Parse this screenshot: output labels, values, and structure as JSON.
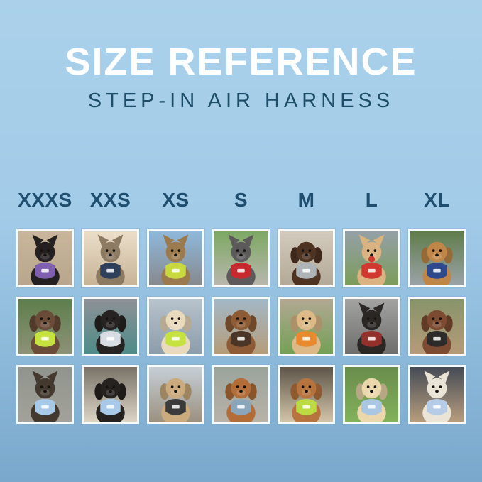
{
  "title": "SIZE REFERENCE",
  "subtitle": "STEP-IN AIR HARNESS",
  "colors": {
    "background_top": "#abd1ea",
    "background_bottom": "#79a8cc",
    "title_text": "#ffffff",
    "subtitle_text": "#1d4d68",
    "header_text": "#1f4e6e",
    "photo_frame": "#f7fbfe"
  },
  "sizes": [
    "XXXS",
    "XXS",
    "XS",
    "S",
    "M",
    "L",
    "XL"
  ],
  "photos": [
    {
      "row": 1,
      "size": "XXXS",
      "animal": "cat",
      "ears": "pointed",
      "fur": "#241f20",
      "harness": "#7e5fb0",
      "bg": [
        "#c9b69b",
        "#b7a68d"
      ],
      "desc": "Black kitten wearing a purple harness indoors by a stair banister"
    },
    {
      "row": 1,
      "size": "XXS",
      "animal": "cat",
      "ears": "pointed",
      "fur": "#8d7a62",
      "harness": "#2e3f5c",
      "bg": [
        "#ecdfca",
        "#c7b397"
      ],
      "desc": "Brown tabby cat wearing a navy harness looking out a window"
    },
    {
      "row": 1,
      "size": "XS",
      "animal": "cat",
      "ears": "pointed",
      "fur": "#9b7b4e",
      "harness": "#c8d93f",
      "bg": [
        "#8fb9dc",
        "#87898d"
      ],
      "desc": "Tabby cat wearing a lime green harness inside a car"
    },
    {
      "row": 1,
      "size": "S",
      "animal": "dog",
      "ears": "pointed",
      "fur": "#5c5a5b",
      "harness": "#c8292e",
      "bg": [
        "#7ca862",
        "#b9b7ae"
      ],
      "desc": "Grey French bulldog wearing a red harness on a sidewalk"
    },
    {
      "row": 1,
      "size": "M",
      "animal": "dog",
      "ears": "floppy",
      "fur": "#4f3322",
      "harness": "#aeb3b8",
      "bg": [
        "#d3cbbd",
        "#b3a998"
      ],
      "desc": "Chocolate spaniel wearing a grey harness on pavement"
    },
    {
      "row": 1,
      "size": "L",
      "animal": "dog",
      "ears": "pointed",
      "fur": "#d9b382",
      "harness": "#d1382f",
      "accessory": "red-ball",
      "bg": [
        "#95a0a8",
        "#7c9c5a"
      ],
      "desc": "Shiba Inu holding a red ball wearing a red harness in a field"
    },
    {
      "row": 1,
      "size": "XL",
      "animal": "dog",
      "ears": "floppy",
      "fur": "#c08648",
      "harness": "#2e4a8c",
      "bg": [
        "#5e7c49",
        "#9ba3a9"
      ],
      "desc": "Golden retriever wearing a navy harness on a path with yellow flowers"
    },
    {
      "row": 2,
      "size": "XXXS",
      "animal": "dog",
      "ears": "floppy",
      "fur": "#6b4c38",
      "harness": "#c6e23e",
      "bg": [
        "#5d7e4c",
        "#8d9277"
      ],
      "desc": "Scruffy brown puppy wearing a neon green harness outdoors"
    },
    {
      "row": 2,
      "size": "XXS",
      "animal": "dog",
      "ears": "floppy",
      "fur": "#272322",
      "harness": "#d7dde2",
      "bg": [
        "#8e9196",
        "#4f8b89"
      ],
      "desc": "Black puppy wearing a light grey harness on a teal blanket in a car"
    },
    {
      "row": 2,
      "size": "XS",
      "animal": "dog",
      "ears": "floppy",
      "fur": "#e9dabd",
      "harness": "#c6e23e",
      "bg": [
        "#b7c3cc",
        "#8c9dab"
      ],
      "desc": "Cream long-haired dachshund wearing a green harness on a boat"
    },
    {
      "row": 2,
      "size": "S",
      "animal": "dog",
      "ears": "floppy",
      "fur": "#8d5c36",
      "harness": "#4a3526",
      "bg": [
        "#a3b8c7",
        "#b59c79"
      ],
      "desc": "Brown long-haired dachshund wearing a dark harness on a wooden dock"
    },
    {
      "row": 2,
      "size": "M",
      "animal": "dog",
      "ears": "floppy",
      "fur": "#dcb987",
      "harness": "#e98a2e",
      "bg": [
        "#b2a894",
        "#74a055"
      ],
      "desc": "Smiling golden retriever puppy wearing an orange harness on a patio"
    },
    {
      "row": 2,
      "size": "L",
      "animal": "dog",
      "ears": "pointed",
      "fur": "#2b2725",
      "harness": "#93302c",
      "bg": [
        "#a3a3a1",
        "#6e6e6c"
      ],
      "desc": "Black and tan dog wearing a dark red harness inside a metal tunnel"
    },
    {
      "row": 2,
      "size": "XL",
      "animal": "dog",
      "ears": "floppy",
      "fur": "#7c4b31",
      "harness": "#2d2b2a",
      "bg": [
        "#87936a",
        "#b59b79"
      ],
      "desc": "Brown and white collie wearing a black harness on wooden steps"
    },
    {
      "row": 3,
      "size": "XXXS",
      "animal": "dog",
      "ears": "pointed",
      "fur": "#43392e",
      "harness": "#a9c9e8",
      "bg": [
        "#90948d",
        "#a3a29a"
      ],
      "desc": "Yorkshire terrier wearing a light blue harness on a sunny sidewalk"
    },
    {
      "row": 3,
      "size": "XXS",
      "animal": "dog",
      "ears": "floppy",
      "fur": "#262220",
      "harness": "#a9c9e8",
      "bg": [
        "#787268",
        "#dcd5c6"
      ],
      "desc": "Black and tan dachshund puppy wearing a light blue harness on a sofa"
    },
    {
      "row": 3,
      "size": "XS",
      "animal": "dog",
      "ears": "floppy",
      "fur": "#cbaa7e",
      "harness": "#3b3b3b",
      "bg": [
        "#c6cfd6",
        "#9c9181"
      ],
      "desc": "Apricot doodle puppy wearing a black harness on a wooden deck"
    },
    {
      "row": 3,
      "size": "S",
      "animal": "dog",
      "ears": "floppy",
      "fur": "#b26d38",
      "harness": "#8ba6ba",
      "bg": [
        "#9aa49b",
        "#b8b2a9"
      ],
      "desc": "Red dachshund wearing a grey-blue harness on concrete"
    },
    {
      "row": 3,
      "size": "M",
      "animal": "dog",
      "ears": "floppy",
      "fur": "#b8743e",
      "harness": "#bcda42",
      "bg": [
        "#5d5549",
        "#d2c4a9"
      ],
      "desc": "Red poodle wearing a lime green harness on a sunny path by stone steps"
    },
    {
      "row": 3,
      "size": "L",
      "animal": "dog",
      "ears": "floppy",
      "fur": "#ead7ab",
      "harness": "#a9c6e2",
      "bg": [
        "#698c4b",
        "#82b15b"
      ],
      "desc": "Cream golden retriever puppy wearing a light blue harness on grass"
    },
    {
      "row": 3,
      "size": "XL",
      "animal": "dog",
      "ears": "pointed",
      "fur": "#eae4d6",
      "harness": "#b6cbe6",
      "bg": [
        "#454b55",
        "#b79d7e"
      ],
      "desc": "White shepherd wearing a light blue harness on an evening city street"
    }
  ]
}
